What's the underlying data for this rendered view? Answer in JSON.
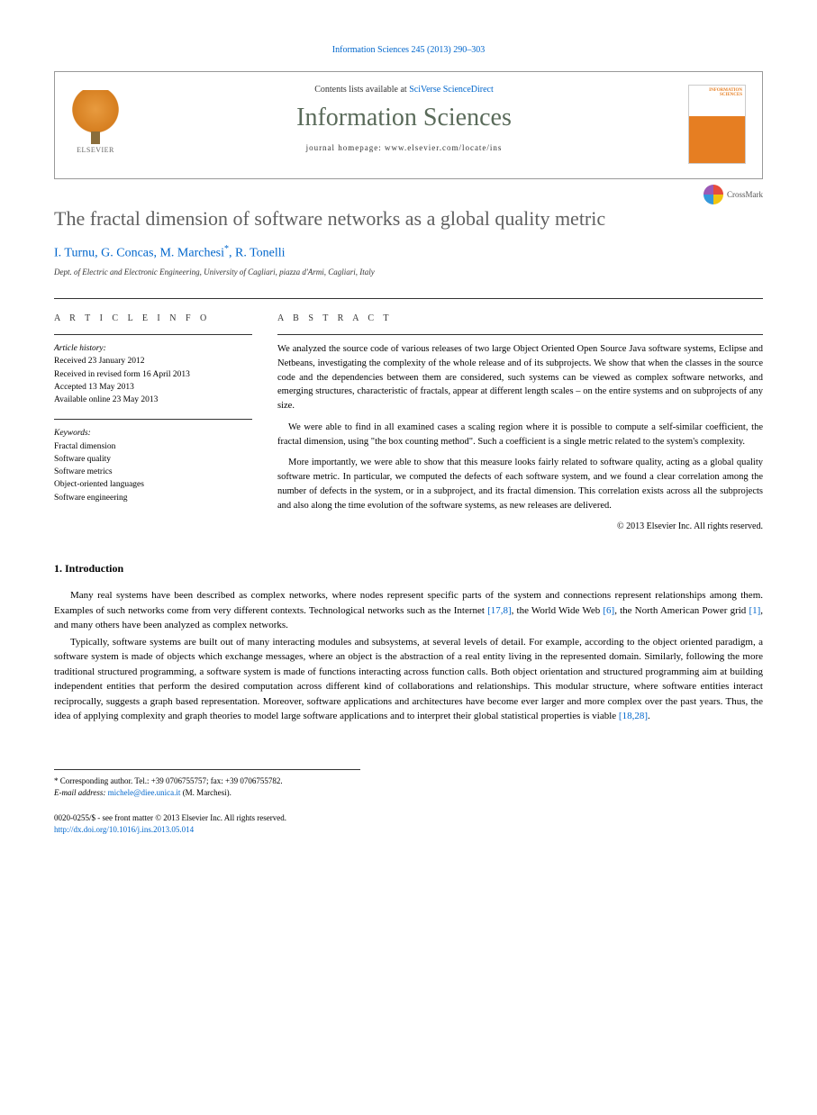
{
  "journal_ref": "Information Sciences 245 (2013) 290–303",
  "masthead": {
    "contents_pre": "Contents lists available at ",
    "contents_link": "SciVerse ScienceDirect",
    "journal_title": "Information Sciences",
    "homepage_pre": "journal homepage: ",
    "homepage_url": "www.elsevier.com/locate/ins",
    "publisher": "ELSEVIER",
    "cover_text": "INFORMATION SCIENCES"
  },
  "crossmark": "CrossMark",
  "article": {
    "title": "The fractal dimension of software networks as a global quality metric",
    "authors_html": "I. Turnu, G. Concas, M. Marchesi *, R. Tonelli",
    "authors": {
      "a1": "I. Turnu",
      "a2": "G. Concas",
      "a3": "M. Marchesi",
      "corr": "*",
      "a4": "R. Tonelli",
      "sep": ", "
    },
    "affiliation": "Dept. of Electric and Electronic Engineering, University of Cagliari, piazza d'Armi, Cagliari, Italy"
  },
  "info": {
    "label": "A R T I C L E   I N F O",
    "history_label": "Article history:",
    "received": "Received 23 January 2012",
    "revised": "Received in revised form 16 April 2013",
    "accepted": "Accepted 13 May 2013",
    "online": "Available online 23 May 2013",
    "keywords_label": "Keywords:",
    "kw1": "Fractal dimension",
    "kw2": "Software quality",
    "kw3": "Software metrics",
    "kw4": "Object-oriented languages",
    "kw5": "Software engineering"
  },
  "abstract": {
    "label": "A B S T R A C T",
    "p1": "We analyzed the source code of various releases of two large Object Oriented Open Source Java software systems, Eclipse and Netbeans, investigating the complexity of the whole release and of its subprojects. We show that when the classes in the source code and the dependencies between them are considered, such systems can be viewed as complex software networks, and emerging structures, characteristic of fractals, appear at different length scales – on the entire systems and on subprojects of any size.",
    "p2": "We were able to find in all examined cases a scaling region where it is possible to compute a self-similar coefficient, the fractal dimension, using \"the box counting method\". Such a coefficient is a single metric related to the system's complexity.",
    "p3": "More importantly, we were able to show that this measure looks fairly related to software quality, acting as a global quality software metric. In particular, we computed the defects of each software system, and we found a clear correlation among the number of defects in the system, or in a subproject, and its fractal dimension. This correlation exists across all the subprojects and also along the time evolution of the software systems, as new releases are delivered.",
    "copyright": "© 2013 Elsevier Inc. All rights reserved."
  },
  "body": {
    "heading": "1. Introduction",
    "p1_a": "Many real systems have been described as complex networks, where nodes represent specific parts of the system and connections represent relationships among them. Examples of such networks come from very different contexts. Technological networks such as the Internet ",
    "ref1": "[17,8]",
    "p1_b": ", the World Wide Web ",
    "ref2": "[6]",
    "p1_c": ", the North American Power grid ",
    "ref3": "[1]",
    "p1_d": ", and many others have been analyzed as complex networks.",
    "p2_a": "Typically, software systems are built out of many interacting modules and subsystems, at several levels of detail. For example, according to the object oriented paradigm, a software system is made of objects which exchange messages, where an object is the abstraction of a real entity living in the represented domain. Similarly, following the more traditional structured programming, a software system is made of functions interacting across function calls. Both object orientation and structured programming aim at building independent entities that perform the desired computation across different kind of collaborations and relationships. This modular structure, where software entities interact reciprocally, suggests a graph based representation. Moreover, software applications and architectures have become ever larger and more complex over the past years. Thus, the idea of applying complexity and graph theories to model large software applications and to interpret their global statistical properties is viable ",
    "ref4": "[18,28]",
    "p2_b": "."
  },
  "footnotes": {
    "corr": "* Corresponding author. Tel.: +39 0706755757; fax: +39 0706755782.",
    "email_label": "E-mail address: ",
    "email": "michele@diee.unica.it",
    "email_suffix": " (M. Marchesi)."
  },
  "bottom": {
    "issn": "0020-0255/$ - see front matter © 2013 Elsevier Inc. All rights reserved.",
    "doi": "http://dx.doi.org/10.1016/j.ins.2013.05.014"
  }
}
